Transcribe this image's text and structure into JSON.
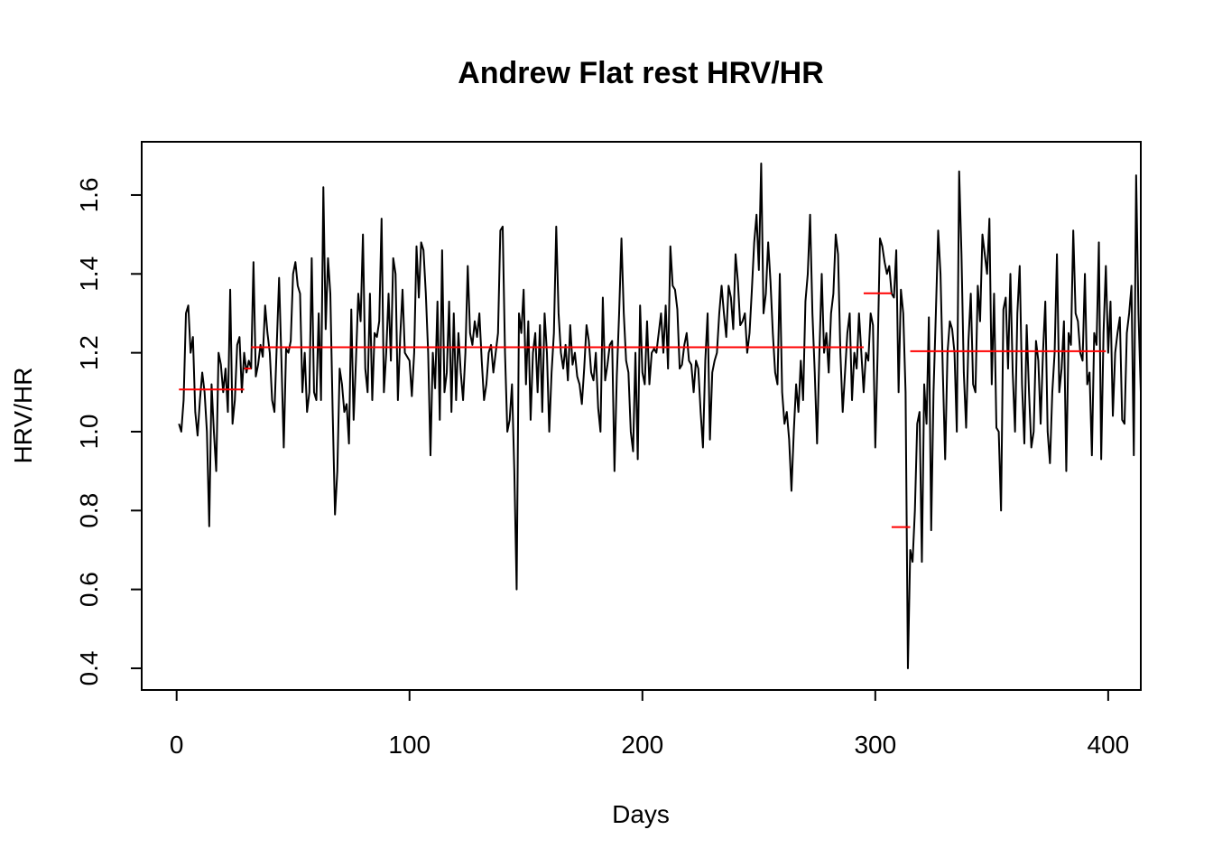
{
  "chart_data": {
    "type": "line",
    "title": "Andrew Flat rest HRV/HR",
    "xlabel": "Days",
    "ylabel": "HRV/HR",
    "xlim": [
      -15,
      414
    ],
    "ylim": [
      0.345,
      1.735
    ],
    "xticks": [
      0,
      100,
      200,
      300,
      400
    ],
    "xtick_labels": [
      "0",
      "100",
      "200",
      "300",
      "400"
    ],
    "yticks": [
      0.4,
      0.6,
      0.8,
      1.0,
      1.2,
      1.4,
      1.6
    ],
    "ytick_labels": [
      "0.4",
      "0.6",
      "0.8",
      "1.0",
      "1.2",
      "1.4",
      "1.6"
    ],
    "grid": false,
    "legend": "none",
    "colors": {
      "series": "#000000",
      "segment_means": "#ff0000",
      "frame": "#000000"
    },
    "series": [
      {
        "x_start": 1,
        "x_step": 1,
        "values": [
          1.02,
          1.0,
          1.08,
          1.3,
          1.32,
          1.2,
          1.24,
          1.05,
          0.99,
          1.08,
          1.15,
          1.1,
          1.0,
          0.76,
          1.12,
          1.0,
          0.9,
          1.2,
          1.17,
          1.1,
          1.16,
          1.05,
          1.36,
          1.02,
          1.08,
          1.22,
          1.24,
          1.1,
          1.2,
          1.15,
          1.18,
          1.16,
          1.43,
          1.14,
          1.17,
          1.22,
          1.19,
          1.32,
          1.25,
          1.2,
          1.08,
          1.05,
          1.22,
          1.39,
          1.18,
          0.96,
          1.21,
          1.2,
          1.23,
          1.4,
          1.43,
          1.37,
          1.35,
          1.1,
          1.2,
          1.05,
          1.1,
          1.44,
          1.1,
          1.08,
          1.3,
          1.08,
          1.62,
          1.26,
          1.44,
          1.35,
          1.05,
          0.79,
          0.9,
          1.16,
          1.12,
          1.05,
          1.07,
          0.97,
          1.31,
          1.03,
          1.18,
          1.35,
          1.28,
          1.5,
          1.16,
          1.1,
          1.35,
          1.08,
          1.25,
          1.24,
          1.28,
          1.54,
          1.1,
          1.2,
          1.35,
          1.18,
          1.44,
          1.4,
          1.08,
          1.24,
          1.36,
          1.2,
          1.19,
          1.18,
          1.09,
          1.2,
          1.47,
          1.34,
          1.48,
          1.46,
          1.35,
          1.2,
          0.94,
          1.2,
          1.11,
          1.33,
          1.03,
          1.46,
          1.1,
          1.15,
          1.33,
          1.05,
          1.3,
          1.08,
          1.25,
          1.15,
          1.08,
          1.2,
          1.42,
          1.25,
          1.22,
          1.28,
          1.24,
          1.3,
          1.18,
          1.08,
          1.12,
          1.2,
          1.22,
          1.15,
          1.2,
          1.25,
          1.51,
          1.52,
          1.2,
          1.0,
          1.03,
          1.12,
          0.9,
          0.6,
          1.3,
          1.25,
          1.36,
          1.12,
          1.28,
          1.03,
          1.2,
          1.25,
          1.1,
          1.27,
          1.05,
          1.3,
          1.2,
          1.0,
          1.15,
          1.25,
          1.52,
          1.3,
          1.2,
          1.16,
          1.22,
          1.13,
          1.27,
          1.17,
          1.2,
          1.14,
          1.12,
          1.07,
          1.16,
          1.27,
          1.23,
          1.15,
          1.13,
          1.2,
          1.06,
          1.0,
          1.34,
          1.13,
          1.17,
          1.22,
          1.23,
          0.9,
          1.14,
          1.3,
          1.49,
          1.3,
          1.18,
          1.15,
          1.0,
          0.95,
          1.2,
          0.93,
          1.32,
          1.15,
          1.12,
          1.28,
          1.12,
          1.2,
          1.21,
          1.2,
          1.25,
          1.3,
          1.2,
          1.32,
          1.16,
          1.47,
          1.37,
          1.36,
          1.31,
          1.16,
          1.17,
          1.22,
          1.25,
          1.18,
          1.17,
          1.1,
          1.18,
          1.16,
          1.05,
          0.96,
          1.18,
          1.3,
          0.98,
          1.15,
          1.18,
          1.2,
          1.3,
          1.37,
          1.3,
          1.24,
          1.37,
          1.34,
          1.26,
          1.45,
          1.38,
          1.27,
          1.28,
          1.3,
          1.2,
          1.25,
          1.36,
          1.48,
          1.55,
          1.41,
          1.68,
          1.3,
          1.35,
          1.48,
          1.38,
          1.25,
          1.15,
          1.12,
          1.4,
          1.1,
          1.02,
          1.05,
          0.98,
          0.85,
          1.0,
          1.12,
          1.05,
          1.18,
          1.08,
          1.33,
          1.4,
          1.55,
          1.3,
          1.15,
          0.97,
          1.2,
          1.4,
          1.2,
          1.25,
          1.15,
          1.3,
          1.35,
          1.5,
          1.45,
          1.2,
          1.05,
          1.15,
          1.25,
          1.3,
          1.08,
          1.2,
          1.16,
          1.3,
          1.2,
          1.1,
          1.2,
          1.18,
          1.3,
          1.27,
          0.96,
          1.2,
          1.49,
          1.47,
          1.43,
          1.4,
          1.42,
          1.35,
          1.34,
          1.46,
          1.1,
          1.36,
          1.3,
          1.1,
          0.4,
          0.7,
          0.67,
          0.8,
          1.02,
          1.05,
          0.67,
          1.12,
          1.02,
          1.29,
          0.75,
          1.1,
          1.3,
          1.51,
          1.4,
          1.15,
          0.93,
          1.2,
          1.28,
          1.26,
          1.2,
          1.0,
          1.66,
          1.45,
          1.15,
          1.01,
          1.23,
          1.35,
          1.12,
          1.1,
          1.37,
          1.28,
          1.5,
          1.45,
          1.4,
          1.54,
          1.12,
          1.35,
          1.01,
          1.0,
          0.8,
          1.31,
          1.34,
          1.16,
          1.4,
          1.15,
          1.0,
          1.3,
          1.42,
          1.12,
          0.97,
          1.27,
          1.1,
          0.96,
          1.0,
          1.23,
          1.18,
          1.02,
          1.2,
          1.33,
          1.0,
          0.92,
          1.1,
          1.2,
          1.45,
          1.1,
          1.16,
          1.28,
          0.9,
          1.25,
          1.22,
          1.51,
          1.3,
          1.28,
          1.2,
          1.18,
          1.4,
          1.12,
          1.15,
          0.94,
          1.25,
          1.22,
          1.48,
          0.93,
          1.25,
          1.42,
          1.2,
          1.33,
          1.04,
          1.2,
          1.25,
          1.29,
          1.03,
          1.02,
          1.25,
          1.3,
          1.37,
          0.94,
          1.65,
          1.3,
          1.1
        ]
      }
    ],
    "segment_means": [
      {
        "x_start": 1,
        "x_end": 29,
        "y": 1.107
      },
      {
        "x_start": 29,
        "x_end": 32,
        "y": 1.16
      },
      {
        "x_start": 32,
        "x_end": 295,
        "y": 1.214
      },
      {
        "x_start": 295,
        "x_end": 307,
        "y": 1.351
      },
      {
        "x_start": 307,
        "x_end": 315,
        "y": 0.758
      },
      {
        "x_start": 315,
        "x_end": 399,
        "y": 1.204
      }
    ]
  }
}
